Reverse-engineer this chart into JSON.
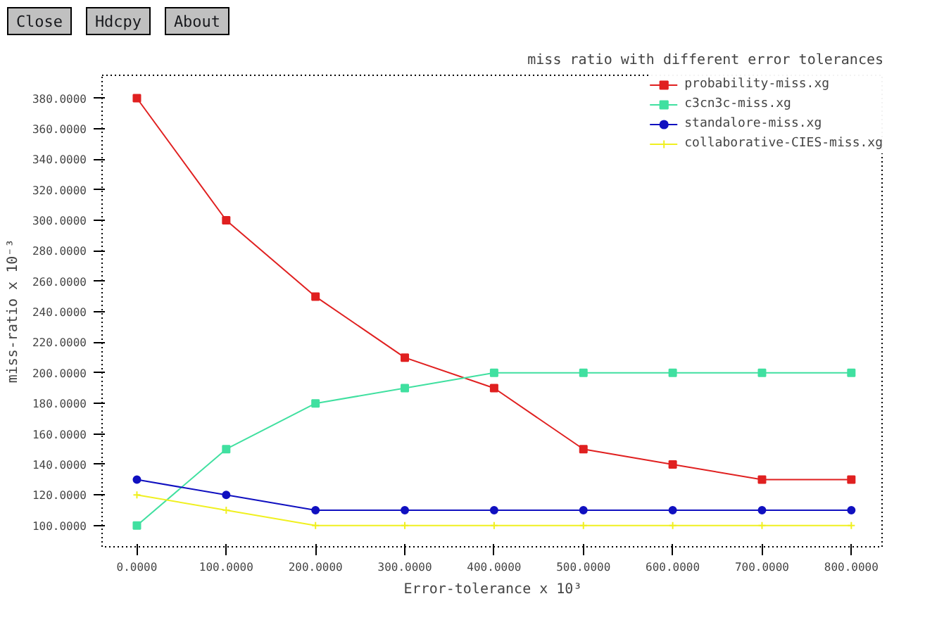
{
  "chart_data": {
    "type": "line",
    "title": "miss ratio with different error tolerances",
    "xlabel": "Error-tolerance x 10³",
    "ylabel": "miss-ratio x 10⁻³",
    "annotations": [
      "Close",
      "Hdcpy",
      "About"
    ],
    "x": [
      0,
      100,
      200,
      300,
      400,
      500,
      600,
      700,
      800
    ],
    "xlim": [
      -39,
      836
    ],
    "ylim": [
      86,
      395
    ],
    "xticks": [
      {
        "value": 0,
        "label": "0.0000"
      },
      {
        "value": 100,
        "label": "100.0000"
      },
      {
        "value": 200,
        "label": "200.0000"
      },
      {
        "value": 300,
        "label": "300.0000"
      },
      {
        "value": 400,
        "label": "400.0000"
      },
      {
        "value": 500,
        "label": "500.0000"
      },
      {
        "value": 600,
        "label": "600.0000"
      },
      {
        "value": 700,
        "label": "700.0000"
      },
      {
        "value": 800,
        "label": "800.0000"
      }
    ],
    "yticks": [
      {
        "value": 100,
        "label": "100.0000"
      },
      {
        "value": 120,
        "label": "120.0000"
      },
      {
        "value": 140,
        "label": "140.0000"
      },
      {
        "value": 160,
        "label": "160.0000"
      },
      {
        "value": 180,
        "label": "180.0000"
      },
      {
        "value": 200,
        "label": "200.0000"
      },
      {
        "value": 220,
        "label": "220.0000"
      },
      {
        "value": 240,
        "label": "240.0000"
      },
      {
        "value": 260,
        "label": "260.0000"
      },
      {
        "value": 280,
        "label": "280.0000"
      },
      {
        "value": 300,
        "label": "300.0000"
      },
      {
        "value": 320,
        "label": "320.0000"
      },
      {
        "value": 340,
        "label": "340.0000"
      },
      {
        "value": 360,
        "label": "360.0000"
      },
      {
        "value": 380,
        "label": "380.0000"
      }
    ],
    "grid": false,
    "legend": "top right",
    "series": [
      {
        "name": "probability-miss.xg",
        "color": "#e02020",
        "marker": "square",
        "values": [
          380,
          300,
          250,
          210,
          190,
          150,
          140,
          130,
          130
        ]
      },
      {
        "name": "c3cn3c-miss.xg",
        "color": "#40e0a0",
        "marker": "square",
        "values": [
          100,
          150,
          180,
          190,
          200,
          200,
          200,
          200,
          200
        ]
      },
      {
        "name": "standalore-miss.xg",
        "color": "#1010c0",
        "marker": "circle",
        "values": [
          130,
          120,
          110,
          110,
          110,
          110,
          110,
          110,
          110
        ]
      },
      {
        "name": "collaborative-CIES-miss.xg",
        "color": "#f0f020",
        "marker": "cross",
        "values": [
          120,
          110,
          100,
          100,
          100,
          100,
          100,
          100,
          100
        ]
      }
    ]
  }
}
